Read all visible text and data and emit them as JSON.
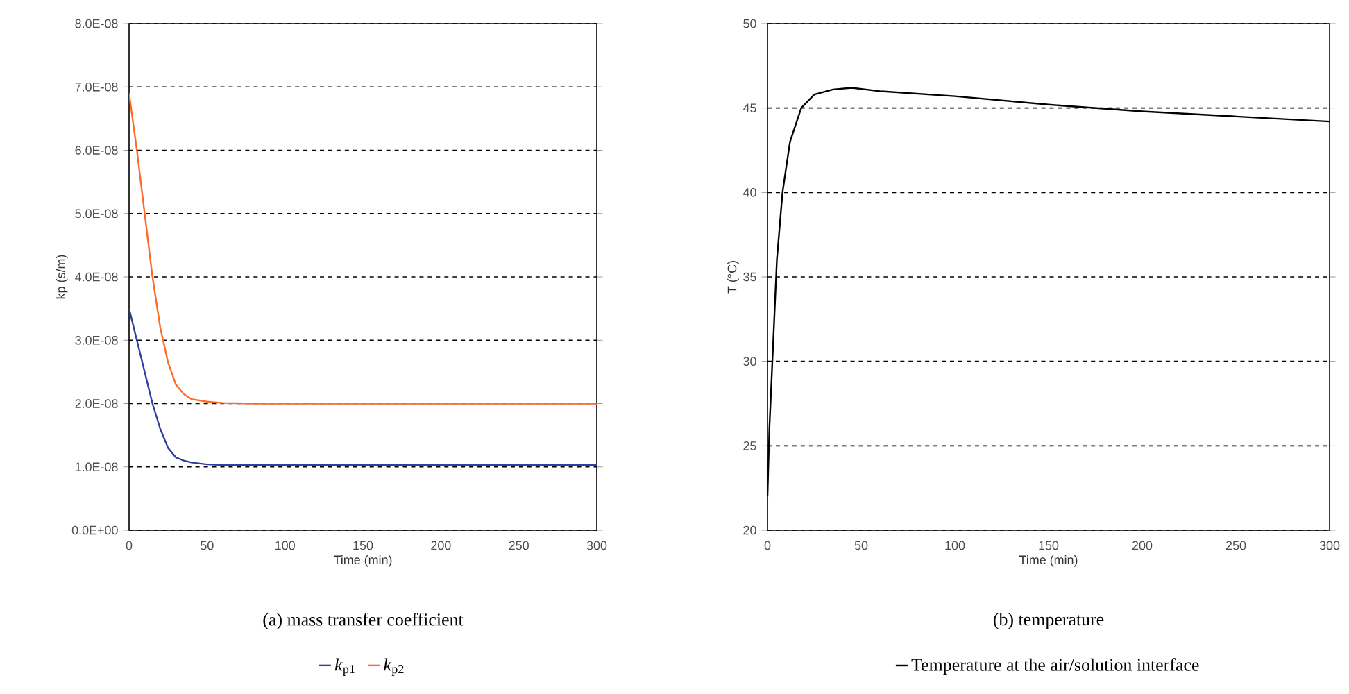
{
  "chart_data": [
    {
      "type": "line",
      "title": "(a) mass transfer coefficient",
      "xlabel": "Time (min)",
      "ylabel": "kp (s/m)",
      "x": [
        0,
        5,
        10,
        15,
        20,
        25,
        30,
        35,
        40,
        50,
        60,
        80,
        150,
        200,
        300
      ],
      "series": [
        {
          "name": "*k*$_{p1}$",
          "color": "#2f3fa0",
          "values": [
            3.5e-08,
            3e-08,
            2.5e-08,
            2e-08,
            1.6e-08,
            1.3e-08,
            1.15e-08,
            1.1e-08,
            1.07e-08,
            1.04e-08,
            1.03e-08,
            1.03e-08,
            1.03e-08,
            1.03e-08,
            1.03e-08
          ]
        },
        {
          "name": "*k*$_{p2}$",
          "color": "#ff6a2a",
          "values": [
            6.9e-08,
            6e-08,
            5e-08,
            4e-08,
            3.2e-08,
            2.65e-08,
            2.3e-08,
            2.15e-08,
            2.07e-08,
            2.03e-08,
            2.01e-08,
            2e-08,
            2e-08,
            2e-08,
            2e-08
          ]
        }
      ],
      "xlim": [
        0,
        300
      ],
      "xticks": [
        0,
        50,
        100,
        150,
        200,
        250,
        300
      ],
      "ylim": [
        0,
        8e-08
      ],
      "yticks": [
        {
          "value": 0,
          "label": "0.0E+00"
        },
        {
          "value": 1e-08,
          "label": "1.0E-08"
        },
        {
          "value": 2e-08,
          "label": "2.0E-08"
        },
        {
          "value": 3e-08,
          "label": "3.0E-08"
        },
        {
          "value": 4e-08,
          "label": "4.0E-08"
        },
        {
          "value": 5e-08,
          "label": "5.0E-08"
        },
        {
          "value": 6e-08,
          "label": "6.0E-08"
        },
        {
          "value": 7e-08,
          "label": "7.0E-08"
        },
        {
          "value": 8e-08,
          "label": "8.0E-08"
        }
      ],
      "grid": "y",
      "legend": "bottom"
    },
    {
      "type": "line",
      "title": "(b) temperature",
      "xlabel": "Time (min)",
      "ylabel": "T (°C)",
      "x": [
        0,
        1,
        2,
        3,
        5,
        8,
        12,
        18,
        25,
        35,
        45,
        60,
        100,
        150,
        200,
        250,
        300
      ],
      "series": [
        {
          "name": "Temperature at the air/solution interface",
          "color": "#000000",
          "values": [
            22,
            26,
            28.5,
            31,
            36,
            40,
            43,
            45,
            45.8,
            46.1,
            46.2,
            46.0,
            45.7,
            45.2,
            44.8,
            44.5,
            44.2
          ]
        }
      ],
      "xlim": [
        0,
        300
      ],
      "xticks": [
        0,
        50,
        100,
        150,
        200,
        250,
        300
      ],
      "ylim": [
        20,
        50
      ],
      "yticks": [
        20,
        25,
        30,
        35,
        40,
        45,
        50
      ],
      "grid": "y",
      "legend": "bottom"
    }
  ]
}
